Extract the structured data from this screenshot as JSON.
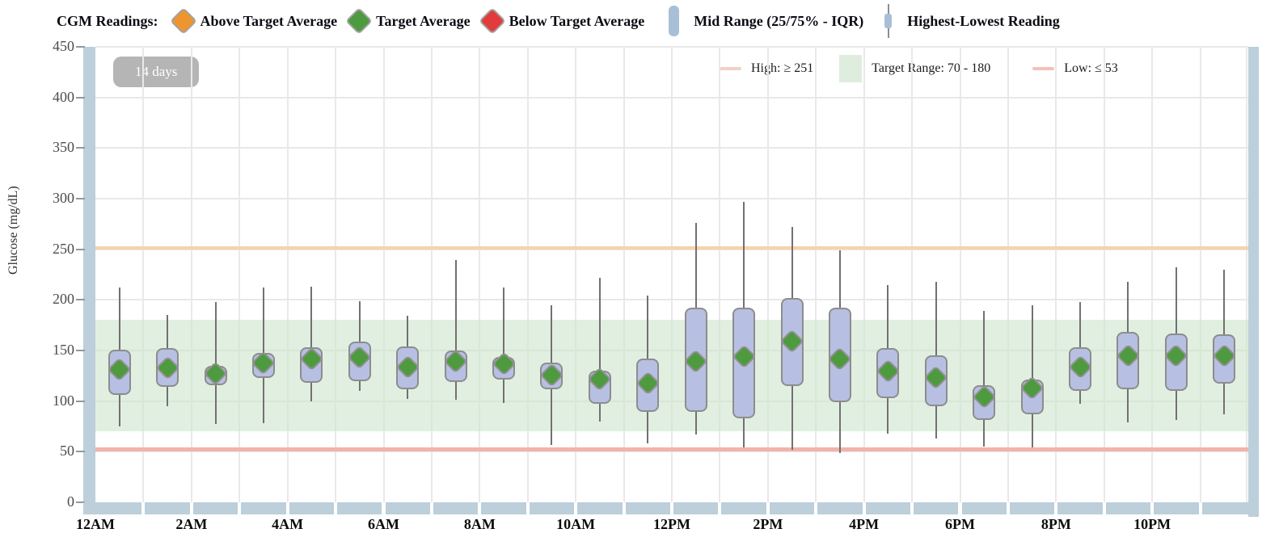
{
  "legend_top": {
    "title": "CGM Readings:",
    "items": [
      {
        "label": "Above Target Average",
        "type": "diamond",
        "color": "#ef9530"
      },
      {
        "label": "Target Average",
        "type": "diamond",
        "color": "#4e9a3e"
      },
      {
        "label": "Below Target Average",
        "type": "diamond",
        "color": "#e23b3b"
      },
      {
        "label": "Mid Range (25/75% - IQR)",
        "type": "bar",
        "color": "#a9bfd7"
      },
      {
        "label": "Highest-Lowest Reading",
        "type": "line",
        "color": "#a9bfd7"
      }
    ]
  },
  "badge": {
    "label": "14 days"
  },
  "chart_legend": {
    "high": {
      "label": "High: ≥ 251",
      "swatch_color": "#f2cfc7"
    },
    "target": {
      "label": "Target Range: 70 - 180",
      "swatch_color": "#dfeddf"
    },
    "low": {
      "label": "Low: ≤ 53",
      "swatch_color": "#f3c1b8"
    }
  },
  "chart_data": {
    "type": "boxplot",
    "ylabel": "Glucose (mg/dL)",
    "ylim": [
      0,
      450
    ],
    "ytick_step": 50,
    "grid": true,
    "high_threshold": 251,
    "low_threshold": 53,
    "target_range": [
      70,
      180
    ],
    "x_labels": [
      "12AM",
      "2AM",
      "4AM",
      "6AM",
      "8AM",
      "10AM",
      "12PM",
      "2PM",
      "4PM",
      "6PM",
      "8PM",
      "10PM"
    ],
    "series": [
      {
        "hour": "12AM",
        "min": 75,
        "q1": 106,
        "avg": 131,
        "q3": 151,
        "max": 212,
        "status": "target"
      },
      {
        "hour": "1AM",
        "min": 95,
        "q1": 114,
        "avg": 133,
        "q3": 152,
        "max": 185,
        "status": "target"
      },
      {
        "hour": "2AM",
        "min": 77,
        "q1": 116,
        "avg": 127,
        "q3": 135,
        "max": 198,
        "status": "target"
      },
      {
        "hour": "3AM",
        "min": 78,
        "q1": 123,
        "avg": 138,
        "q3": 148,
        "max": 212,
        "status": "target"
      },
      {
        "hour": "4AM",
        "min": 100,
        "q1": 118,
        "avg": 142,
        "q3": 153,
        "max": 213,
        "status": "target"
      },
      {
        "hour": "5AM",
        "min": 110,
        "q1": 120,
        "avg": 143,
        "q3": 159,
        "max": 199,
        "status": "target"
      },
      {
        "hour": "6AM",
        "min": 102,
        "q1": 112,
        "avg": 134,
        "q3": 154,
        "max": 184,
        "status": "target"
      },
      {
        "hour": "7AM",
        "min": 101,
        "q1": 119,
        "avg": 139,
        "q3": 150,
        "max": 239,
        "status": "target"
      },
      {
        "hour": "8AM",
        "min": 98,
        "q1": 121,
        "avg": 137,
        "q3": 144,
        "max": 212,
        "status": "target"
      },
      {
        "hour": "9AM",
        "min": 57,
        "q1": 112,
        "avg": 126,
        "q3": 138,
        "max": 195,
        "status": "target"
      },
      {
        "hour": "10AM",
        "min": 80,
        "q1": 97,
        "avg": 122,
        "q3": 130,
        "max": 222,
        "status": "target"
      },
      {
        "hour": "11AM",
        "min": 58,
        "q1": 89,
        "avg": 118,
        "q3": 142,
        "max": 204,
        "status": "target"
      },
      {
        "hour": "12PM",
        "min": 67,
        "q1": 89,
        "avg": 139,
        "q3": 192,
        "max": 276,
        "status": "target"
      },
      {
        "hour": "1PM",
        "min": 54,
        "q1": 83,
        "avg": 144,
        "q3": 192,
        "max": 297,
        "status": "target"
      },
      {
        "hour": "2PM",
        "min": 52,
        "q1": 115,
        "avg": 159,
        "q3": 202,
        "max": 272,
        "status": "target"
      },
      {
        "hour": "3PM",
        "min": 49,
        "q1": 99,
        "avg": 142,
        "q3": 192,
        "max": 249,
        "status": "target"
      },
      {
        "hour": "4PM",
        "min": 68,
        "q1": 103,
        "avg": 130,
        "q3": 152,
        "max": 215,
        "status": "target"
      },
      {
        "hour": "5PM",
        "min": 63,
        "q1": 95,
        "avg": 123,
        "q3": 145,
        "max": 218,
        "status": "target"
      },
      {
        "hour": "6PM",
        "min": 55,
        "q1": 81,
        "avg": 104,
        "q3": 116,
        "max": 189,
        "status": "target"
      },
      {
        "hour": "7PM",
        "min": 54,
        "q1": 87,
        "avg": 113,
        "q3": 121,
        "max": 195,
        "status": "target"
      },
      {
        "hour": "8PM",
        "min": 97,
        "q1": 110,
        "avg": 134,
        "q3": 153,
        "max": 198,
        "status": "target"
      },
      {
        "hour": "9PM",
        "min": 79,
        "q1": 112,
        "avg": 145,
        "q3": 168,
        "max": 218,
        "status": "target"
      },
      {
        "hour": "10PM",
        "min": 81,
        "q1": 110,
        "avg": 145,
        "q3": 167,
        "max": 232,
        "status": "target"
      },
      {
        "hour": "11PM",
        "min": 87,
        "q1": 117,
        "avg": 145,
        "q3": 166,
        "max": 230,
        "status": "target"
      }
    ]
  },
  "colors": {
    "above": "#ef9530",
    "target": "#4e9a3e",
    "below": "#e23b3b",
    "box_fill": "#b7c0e2",
    "box_border": "#8d8d8d",
    "whisker": "#717171",
    "axis_bar": "#bccfda",
    "target_band": "#cfe5cf",
    "high_line": "#f8d2a8",
    "low_line": "#f1b3aa",
    "badge_bg": "#b5b5b5",
    "legend_high_swatch": "#f2cfc7",
    "legend_low_swatch": "#f3c1b8",
    "legend_target_swatch": "#dfeddf"
  }
}
